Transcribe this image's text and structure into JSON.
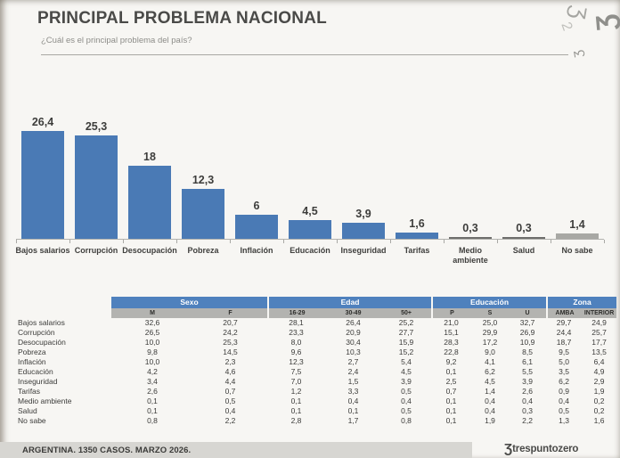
{
  "header": {
    "title": "PRINCIPAL PROBLEMA NACIONAL",
    "subtitle": "¿Cuál es el principal problema del país?",
    "ornament_glyph": "Ʒ",
    "watermark_glyphs": [
      "Ʒ",
      "2",
      "Ʒ"
    ]
  },
  "chart_data": {
    "type": "bar",
    "title": "PRINCIPAL PROBLEMA NACIONAL",
    "xlabel": "",
    "ylabel": "",
    "ylim": [
      0,
      30
    ],
    "grid": false,
    "legend": false,
    "categories": [
      "Bajos salarios",
      "Corrupción",
      "Desocupación",
      "Pobreza",
      "Inflación",
      "Educación",
      "Inseguridad",
      "Tarifas",
      "Medio ambiente",
      "Salud",
      "No sabe"
    ],
    "category_labels": [
      "Bajos salarios",
      "Corrupción",
      "Desocupación",
      "Pobreza",
      "Inflación",
      "Educación",
      "Inseguridad",
      "Tarifas",
      "Medio\nambiente",
      "Salud",
      "No sabe"
    ],
    "values": [
      26.4,
      25.3,
      18,
      12.3,
      6,
      4.5,
      3.9,
      1.6,
      0.3,
      0.3,
      1.4
    ],
    "value_labels": [
      "26,4",
      "25,3",
      "18",
      "12,3",
      "6",
      "4,5",
      "3,9",
      "1,6",
      "0,3",
      "0,3",
      "1,4"
    ],
    "bar_color": "#4a7ab5",
    "muted_bar_color": "#a8a8a4",
    "tiny_bar_color": "#6e6e6c",
    "muted_categories": [
      "No sabe"
    ]
  },
  "table": {
    "groups": [
      {
        "label": "Sexo",
        "columns": [
          "M",
          "F"
        ]
      },
      {
        "label": "Edad",
        "columns": [
          "16-29",
          "30-49",
          "50+"
        ]
      },
      {
        "label": "Educación",
        "columns": [
          "P",
          "S",
          "U"
        ]
      },
      {
        "label": "Zona",
        "columns": [
          "AMBA",
          "INTERIOR"
        ]
      }
    ],
    "rows": [
      {
        "label": "Bajos salarios",
        "values": [
          "32,6",
          "20,7",
          "28,1",
          "26,4",
          "25,2",
          "21,0",
          "25,0",
          "32,7",
          "29,7",
          "24,9"
        ]
      },
      {
        "label": "Corrupción",
        "values": [
          "26,5",
          "24,2",
          "23,3",
          "20,9",
          "27,7",
          "15,1",
          "29,9",
          "26,9",
          "24,4",
          "25,7"
        ]
      },
      {
        "label": "Desocupación",
        "values": [
          "10,0",
          "25,3",
          "8,0",
          "30,4",
          "15,9",
          "28,3",
          "17,2",
          "10,9",
          "18,7",
          "17,7"
        ]
      },
      {
        "label": "Pobreza",
        "values": [
          "9,8",
          "14,5",
          "9,6",
          "10,3",
          "15,2",
          "22,8",
          "9,0",
          "8,5",
          "9,5",
          "13,5"
        ]
      },
      {
        "label": "Inflación",
        "values": [
          "10,0",
          "2,3",
          "12,3",
          "2,7",
          "5,4",
          "9,2",
          "4,1",
          "6,1",
          "5,0",
          "6,4"
        ]
      },
      {
        "label": "Educación",
        "values": [
          "4,2",
          "4,6",
          "7,5",
          "2,4",
          "4,5",
          "0,1",
          "6,2",
          "5,5",
          "3,5",
          "4,9"
        ]
      },
      {
        "label": "Inseguridad",
        "values": [
          "3,4",
          "4,4",
          "7,0",
          "1,5",
          "3,9",
          "2,5",
          "4,5",
          "3,9",
          "6,2",
          "2,9"
        ]
      },
      {
        "label": "Tarifas",
        "values": [
          "2,6",
          "0,7",
          "1,2",
          "3,3",
          "0,5",
          "0,7",
          "1,4",
          "2,6",
          "0,9",
          "1,9"
        ]
      },
      {
        "label": "Medio ambiente",
        "values": [
          "0,1",
          "0,5",
          "0,1",
          "0,4",
          "0,4",
          "0,1",
          "0,4",
          "0,4",
          "0,4",
          "0,2"
        ]
      },
      {
        "label": "Salud",
        "values": [
          "0,1",
          "0,4",
          "0,1",
          "0,1",
          "0,5",
          "0,1",
          "0,4",
          "0,3",
          "0,5",
          "0,2"
        ]
      },
      {
        "label": "No sabe",
        "values": [
          "0,8",
          "2,2",
          "2,8",
          "1,7",
          "0,8",
          "0,1",
          "1,9",
          "2,2",
          "1,3",
          "1,6"
        ]
      }
    ]
  },
  "footer": {
    "note": "ARGENTINA. 1350 CASOS. MARZO 2026.",
    "logo_glyph": "Ʒ",
    "logo_text": "trespuntozero"
  },
  "colors": {
    "bar_blue": "#4a7ab5",
    "bar_gray": "#a8a8a4",
    "table_header_blue": "#4f81bd",
    "table_subheader_gray": "#b3b3b0",
    "footer_bar_gray": "#d7d6d2"
  }
}
